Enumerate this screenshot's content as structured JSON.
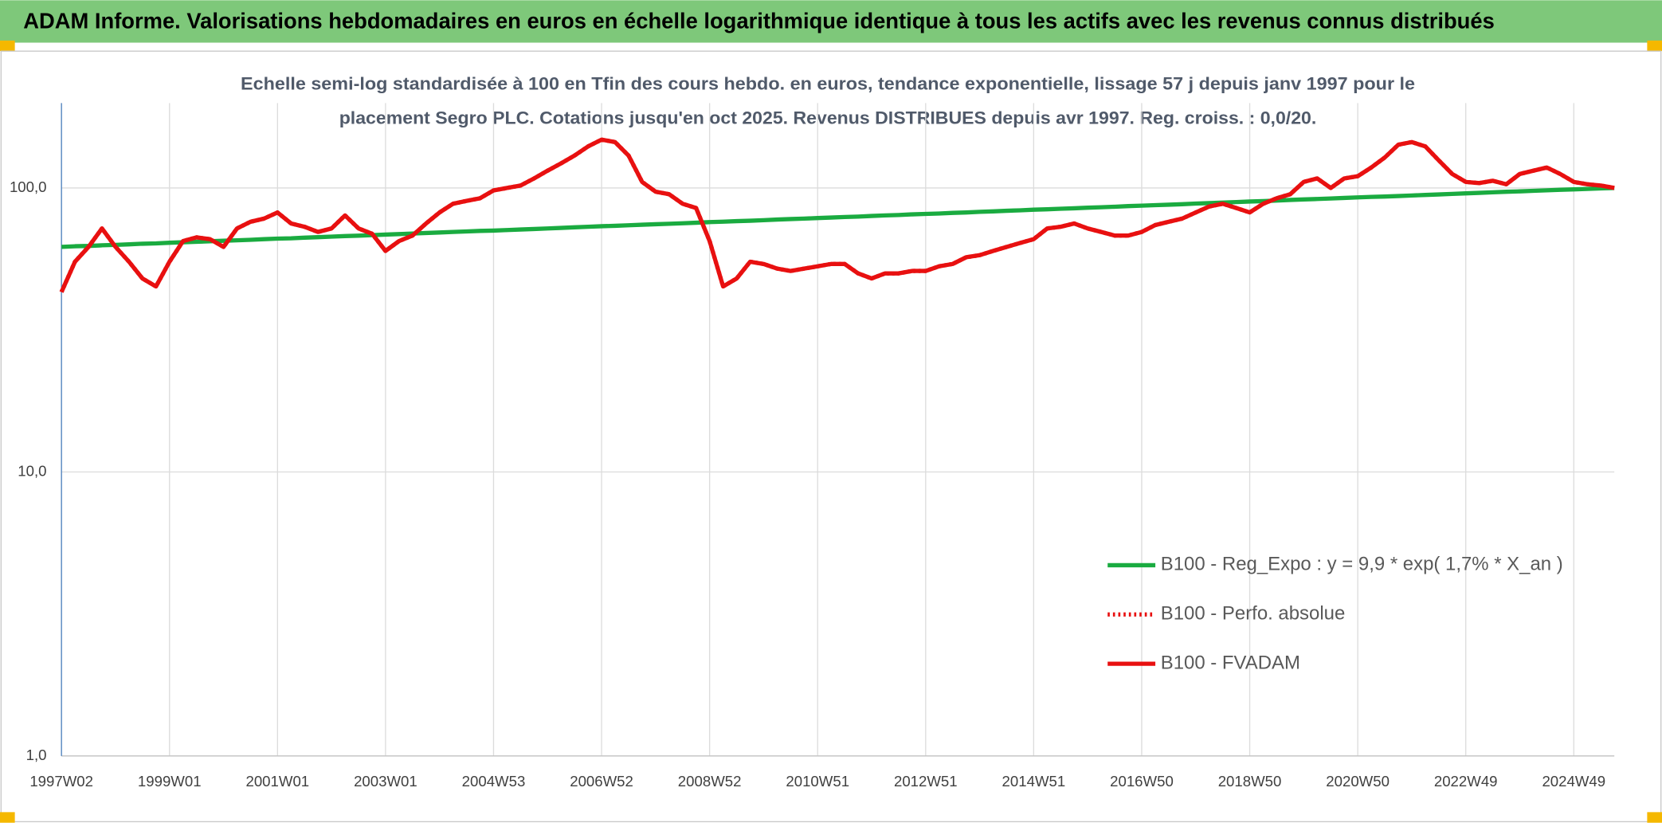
{
  "chart_data": {
    "type": "line",
    "title": "ADAM Informe. Valorisations hebdomadaires en euros en échelle logarithmique identique à tous les actifs avec les revenus connus distribués",
    "subtitle": [
      "Echelle semi-log standardisée à 100 en Tfin des cours hebdo. en euros, tendance exponentielle, lissage 57 j depuis janv 1997 pour le",
      "placement Segro PLC. Cotations jusqu'en oct 2025. Revenus DISTRIBUES depuis avr 1997. Reg. croiss. : 0,0/20."
    ],
    "categories": [
      "1997W02",
      null,
      null,
      null,
      null,
      null,
      null,
      null,
      "1999W01",
      null,
      null,
      null,
      null,
      null,
      null,
      null,
      "2001W01",
      null,
      null,
      null,
      null,
      null,
      null,
      null,
      "2003W01",
      null,
      null,
      null,
      null,
      null,
      null,
      null,
      "2004W53",
      null,
      null,
      null,
      null,
      null,
      null,
      null,
      "2006W52",
      null,
      null,
      null,
      null,
      null,
      null,
      null,
      "2008W52",
      null,
      null,
      null,
      null,
      null,
      null,
      null,
      "2010W51",
      null,
      null,
      null,
      null,
      null,
      null,
      null,
      "2012W51",
      null,
      null,
      null,
      null,
      null,
      null,
      null,
      "2014W51",
      null,
      null,
      null,
      null,
      null,
      null,
      null,
      "2016W50",
      null,
      null,
      null,
      null,
      null,
      null,
      null,
      "2018W50",
      null,
      null,
      null,
      null,
      null,
      null,
      null,
      "2020W50",
      null,
      null,
      null,
      null,
      null,
      null,
      null,
      "2022W49",
      null,
      null,
      null,
      null,
      null,
      null,
      null,
      "2024W49",
      null,
      null,
      null
    ],
    "series": [
      {
        "name": "B100 - Reg_Expo : y = 9,9 * exp( 1,7% *  X_an )",
        "color": "#1aab40",
        "style": "solid",
        "values": [
          62.0,
          62.3,
          62.5,
          62.8,
          63.0,
          63.3,
          63.6,
          63.8,
          64.1,
          64.4,
          64.6,
          64.9,
          65.2,
          65.4,
          65.7,
          66.0,
          66.3,
          66.5,
          66.8,
          67.1,
          67.4,
          67.7,
          67.9,
          68.2,
          68.5,
          68.8,
          69.1,
          69.4,
          69.7,
          70.0,
          70.3,
          70.6,
          70.8,
          71.1,
          71.4,
          71.7,
          72.0,
          72.3,
          72.7,
          73.0,
          73.3,
          73.6,
          73.9,
          74.2,
          74.5,
          74.8,
          75.1,
          75.4,
          75.8,
          76.1,
          76.4,
          76.7,
          77.0,
          77.4,
          77.7,
          78.0,
          78.3,
          78.7,
          79.0,
          79.3,
          79.7,
          80.0,
          80.3,
          80.7,
          81.0,
          81.3,
          81.7,
          82.0,
          82.4,
          82.7,
          83.1,
          83.4,
          83.8,
          84.1,
          84.5,
          84.8,
          85.2,
          85.5,
          85.9,
          86.3,
          86.6,
          87.0,
          87.3,
          87.7,
          88.1,
          88.4,
          88.8,
          89.2,
          89.6,
          89.9,
          90.3,
          90.7,
          91.1,
          91.4,
          91.8,
          92.2,
          92.6,
          93.0,
          93.3,
          93.7,
          94.1,
          94.5,
          94.9,
          95.3,
          95.7,
          96.1,
          96.5,
          96.9,
          97.3,
          97.7,
          98.1,
          98.5,
          98.9,
          99.2,
          99.6,
          100.0
        ]
      },
      {
        "name": "B100 - Perfo. absolue",
        "color": "#e81010",
        "style": "dotted",
        "values": [
          43,
          55,
          62,
          72,
          62,
          55,
          48,
          45,
          55,
          65,
          67,
          66,
          62,
          72,
          76,
          78,
          82,
          75,
          73,
          70,
          72,
          80,
          72,
          69,
          60,
          65,
          68,
          75,
          82,
          88,
          90,
          92,
          98,
          100,
          102,
          108,
          115,
          122,
          130,
          140,
          148,
          145,
          130,
          105,
          97,
          95,
          88,
          85,
          65,
          45,
          48,
          55,
          54,
          52,
          51,
          52,
          53,
          54,
          54,
          50,
          48,
          50,
          50,
          51,
          51,
          53,
          54,
          57,
          58,
          60,
          62,
          64,
          66,
          72,
          73,
          75,
          72,
          70,
          68,
          68,
          70,
          74,
          76,
          78,
          82,
          86,
          88,
          85,
          82,
          88,
          92,
          95,
          105,
          108,
          100,
          108,
          110,
          118,
          128,
          142,
          145,
          140,
          125,
          112,
          105,
          104,
          106,
          103,
          112,
          115,
          118,
          112,
          105,
          103,
          102,
          100
        ]
      },
      {
        "name": "B100 - FVADAM",
        "color": "#e81010",
        "style": "solid",
        "values": [
          43,
          55,
          62,
          72,
          62,
          55,
          48,
          45,
          55,
          65,
          67,
          66,
          62,
          72,
          76,
          78,
          82,
          75,
          73,
          70,
          72,
          80,
          72,
          69,
          60,
          65,
          68,
          75,
          82,
          88,
          90,
          92,
          98,
          100,
          102,
          108,
          115,
          122,
          130,
          140,
          148,
          145,
          130,
          105,
          97,
          95,
          88,
          85,
          65,
          45,
          48,
          55,
          54,
          52,
          51,
          52,
          53,
          54,
          54,
          50,
          48,
          50,
          50,
          51,
          51,
          53,
          54,
          57,
          58,
          60,
          62,
          64,
          66,
          72,
          73,
          75,
          72,
          70,
          68,
          68,
          70,
          74,
          76,
          78,
          82,
          86,
          88,
          85,
          82,
          88,
          92,
          95,
          105,
          108,
          100,
          108,
          110,
          118,
          128,
          142,
          145,
          140,
          125,
          112,
          105,
          104,
          106,
          103,
          112,
          115,
          118,
          112,
          105,
          103,
          102,
          100
        ]
      }
    ],
    "ylim": [
      1,
      199
    ],
    "yticks": [
      {
        "value": 1,
        "label": "1,0"
      },
      {
        "value": 10,
        "label": "10,0"
      },
      {
        "value": 100,
        "label": "100,0"
      }
    ],
    "log_y": true,
    "grid": true,
    "legend": "lower right"
  }
}
